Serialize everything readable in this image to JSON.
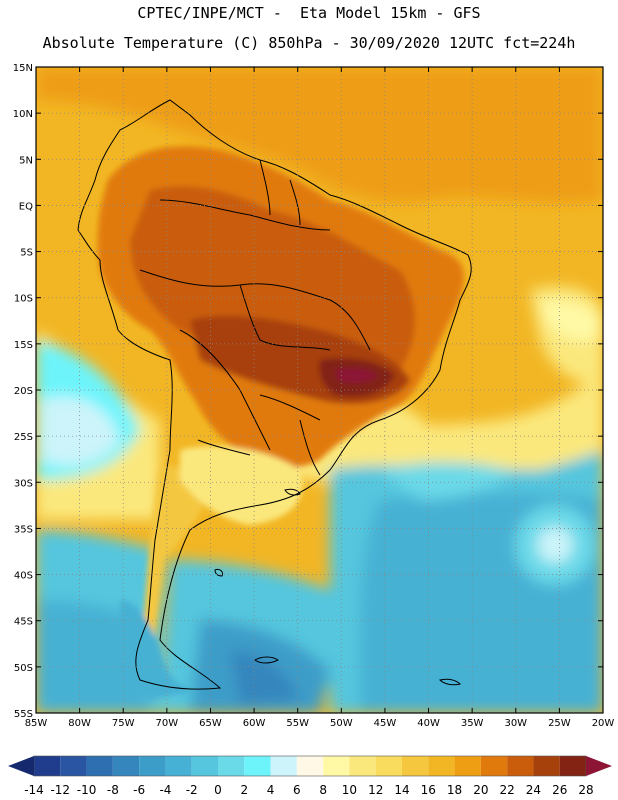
{
  "header": {
    "line1": "CPTEC/INPE/MCT -  Eta Model 15km - GFS",
    "line2": "Absolute Temperature (C) 850hPa - 30/09/2020 12UTC fct=224h"
  },
  "map": {
    "lat_labels": [
      "15N",
      "10N",
      "5N",
      "EQ",
      "5S",
      "10S",
      "15S",
      "20S",
      "25S",
      "30S",
      "35S",
      "40S",
      "45S",
      "50S",
      "55S"
    ],
    "lon_labels": [
      "85W",
      "80W",
      "75W",
      "70W",
      "65W",
      "60W",
      "55W",
      "50W",
      "45W",
      "40W",
      "35W",
      "30W",
      "25W",
      "20W"
    ],
    "lat_range": [
      15,
      -55
    ],
    "lon_range": [
      -85,
      -20
    ],
    "field": "Absolute Temperature (C) 850hPa"
  },
  "colorbar": {
    "tick_labels": [
      "-14",
      "-12",
      "-10",
      "-8",
      "-6",
      "-4",
      "-2",
      "0",
      "2",
      "4",
      "6",
      "8",
      "10",
      "12",
      "14",
      "16",
      "18",
      "20",
      "22",
      "24",
      "26",
      "28"
    ],
    "colors": [
      "#1f3d8c",
      "#2a55a3",
      "#2d6fb0",
      "#3486bd",
      "#3c9dc9",
      "#46b1d4",
      "#55c6de",
      "#6ad9e8",
      "#6df4fb",
      "#ccf4fa",
      "#fff8e6",
      "#fff9a6",
      "#fbe87d",
      "#f9dc5e",
      "#f4c73f",
      "#f2b624",
      "#ee9e12",
      "#e17a0d",
      "#c95d0c",
      "#a7410b",
      "#822313"
    ],
    "under_color": "#152a6e",
    "over_color": "#8c1535"
  }
}
